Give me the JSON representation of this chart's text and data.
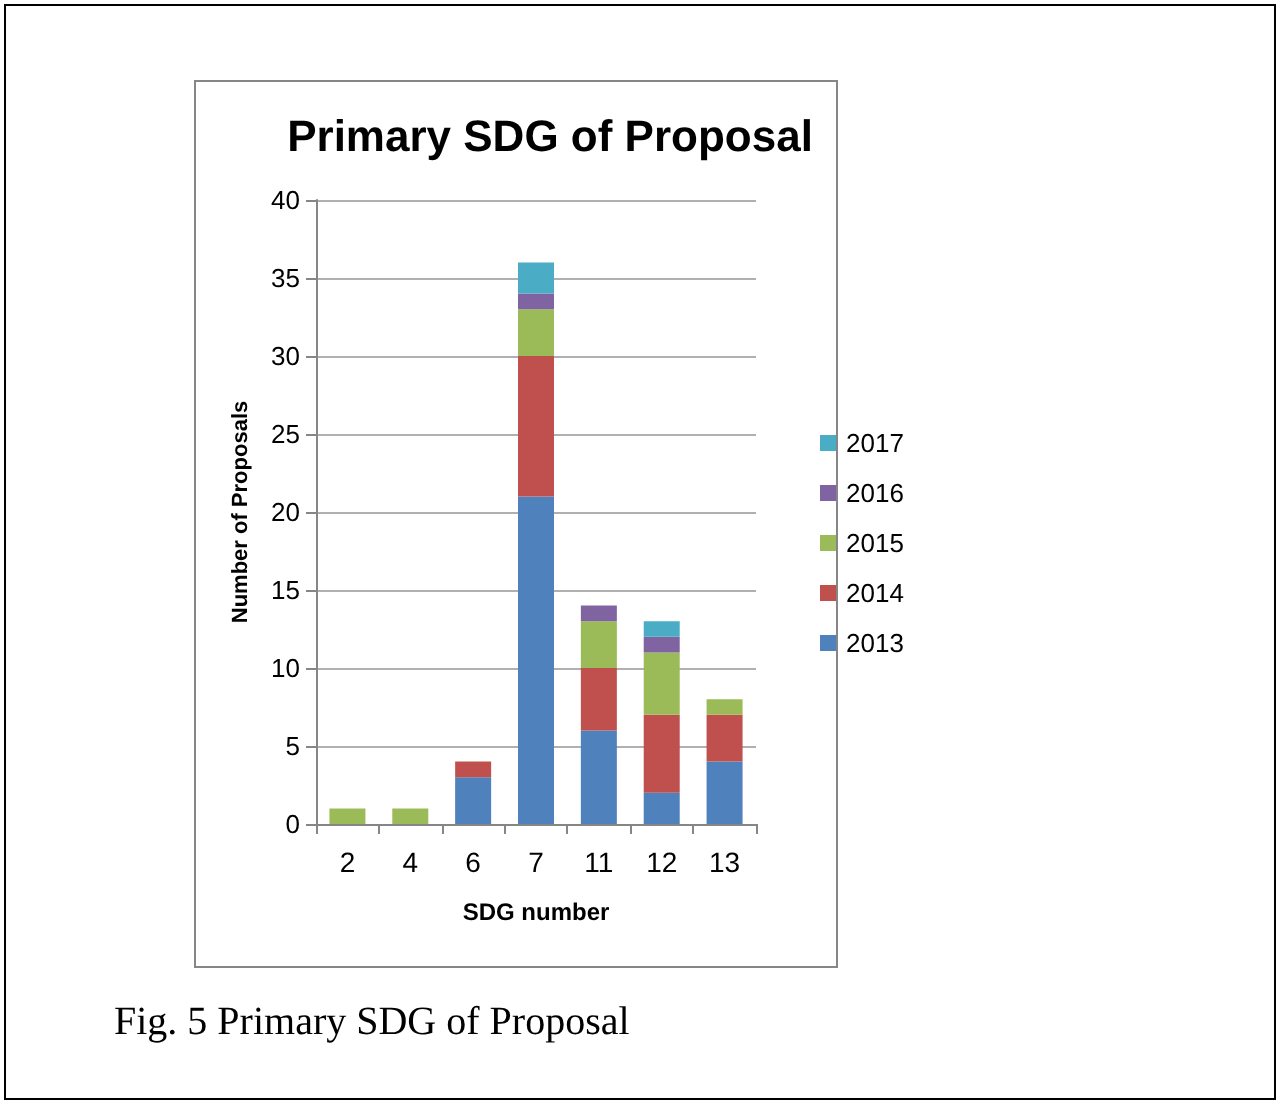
{
  "chart_data": {
    "type": "bar",
    "title": "Primary SDG of Proposal",
    "xlabel": "SDG number",
    "ylabel": "Number of Proposals",
    "categories": [
      "2",
      "4",
      "6",
      "7",
      "11",
      "12",
      "13"
    ],
    "stacked": true,
    "series": [
      {
        "name": "2013",
        "color": "#4f81bd",
        "values": [
          null,
          null,
          3,
          21,
          6,
          2,
          4
        ]
      },
      {
        "name": "2014",
        "color": "#c0504d",
        "values": [
          null,
          null,
          1,
          9,
          4,
          5,
          3
        ]
      },
      {
        "name": "2015",
        "color": "#9bbb59",
        "values": [
          1,
          1,
          null,
          3,
          3,
          4,
          1
        ]
      },
      {
        "name": "2016",
        "color": "#8064a2",
        "values": [
          null,
          null,
          null,
          1,
          1,
          1,
          null
        ]
      },
      {
        "name": "2017",
        "color": "#4bacc6",
        "values": [
          null,
          null,
          null,
          2,
          null,
          1,
          null
        ]
      }
    ],
    "ylim": [
      0,
      40
    ],
    "yticks": [
      0,
      5,
      10,
      15,
      20,
      25,
      30,
      35,
      40
    ],
    "grid": "y",
    "legend": "right",
    "annotations": [
      "Fig. 5 Primary SDG of Proposal"
    ]
  }
}
